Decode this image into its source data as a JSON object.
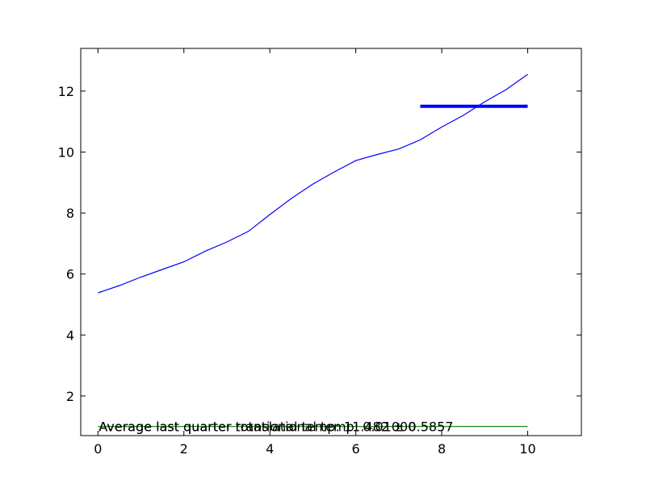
{
  "chart_data": {
    "type": "line",
    "xlim": [
      -0.4,
      11.25
    ],
    "ylim": [
      0.7,
      13.4
    ],
    "x_ticks": [
      0,
      2,
      4,
      6,
      8,
      10
    ],
    "y_ticks": [
      2,
      4,
      6,
      8,
      10,
      12
    ],
    "grid": false,
    "series": [
      {
        "style": "thin-line",
        "color": "#0000ff",
        "x": [
          0,
          0.5,
          1,
          1.5,
          2,
          2.5,
          3,
          3.5,
          4,
          4.5,
          5,
          5.5,
          6,
          6.5,
          7,
          7.5,
          8,
          8.5,
          9,
          9.5,
          10
        ],
        "y": [
          5.38,
          5.62,
          5.9,
          6.15,
          6.4,
          6.75,
          7.05,
          7.4,
          7.95,
          8.48,
          8.95,
          9.35,
          9.72,
          9.92,
          10.1,
          10.4,
          10.82,
          11.2,
          11.65,
          12.05,
          12.55
        ]
      },
      {
        "style": "thick-line",
        "color": "#0000ff",
        "x": [
          7.5,
          10
        ],
        "y": [
          11.5,
          11.5
        ]
      },
      {
        "style": "thin-line",
        "color": "#008000",
        "x": [
          0,
          10
        ],
        "y": [
          1.0,
          1.0
        ]
      }
    ],
    "annotations": [
      {
        "text": "Average last quarter rotational temp: 11.482 ± 0.5857",
        "x": 0,
        "y": 1.0
      },
      {
        "text": "Average last quarter translational temp: 0.01000",
        "x": 0,
        "y": 1.0
      }
    ]
  }
}
